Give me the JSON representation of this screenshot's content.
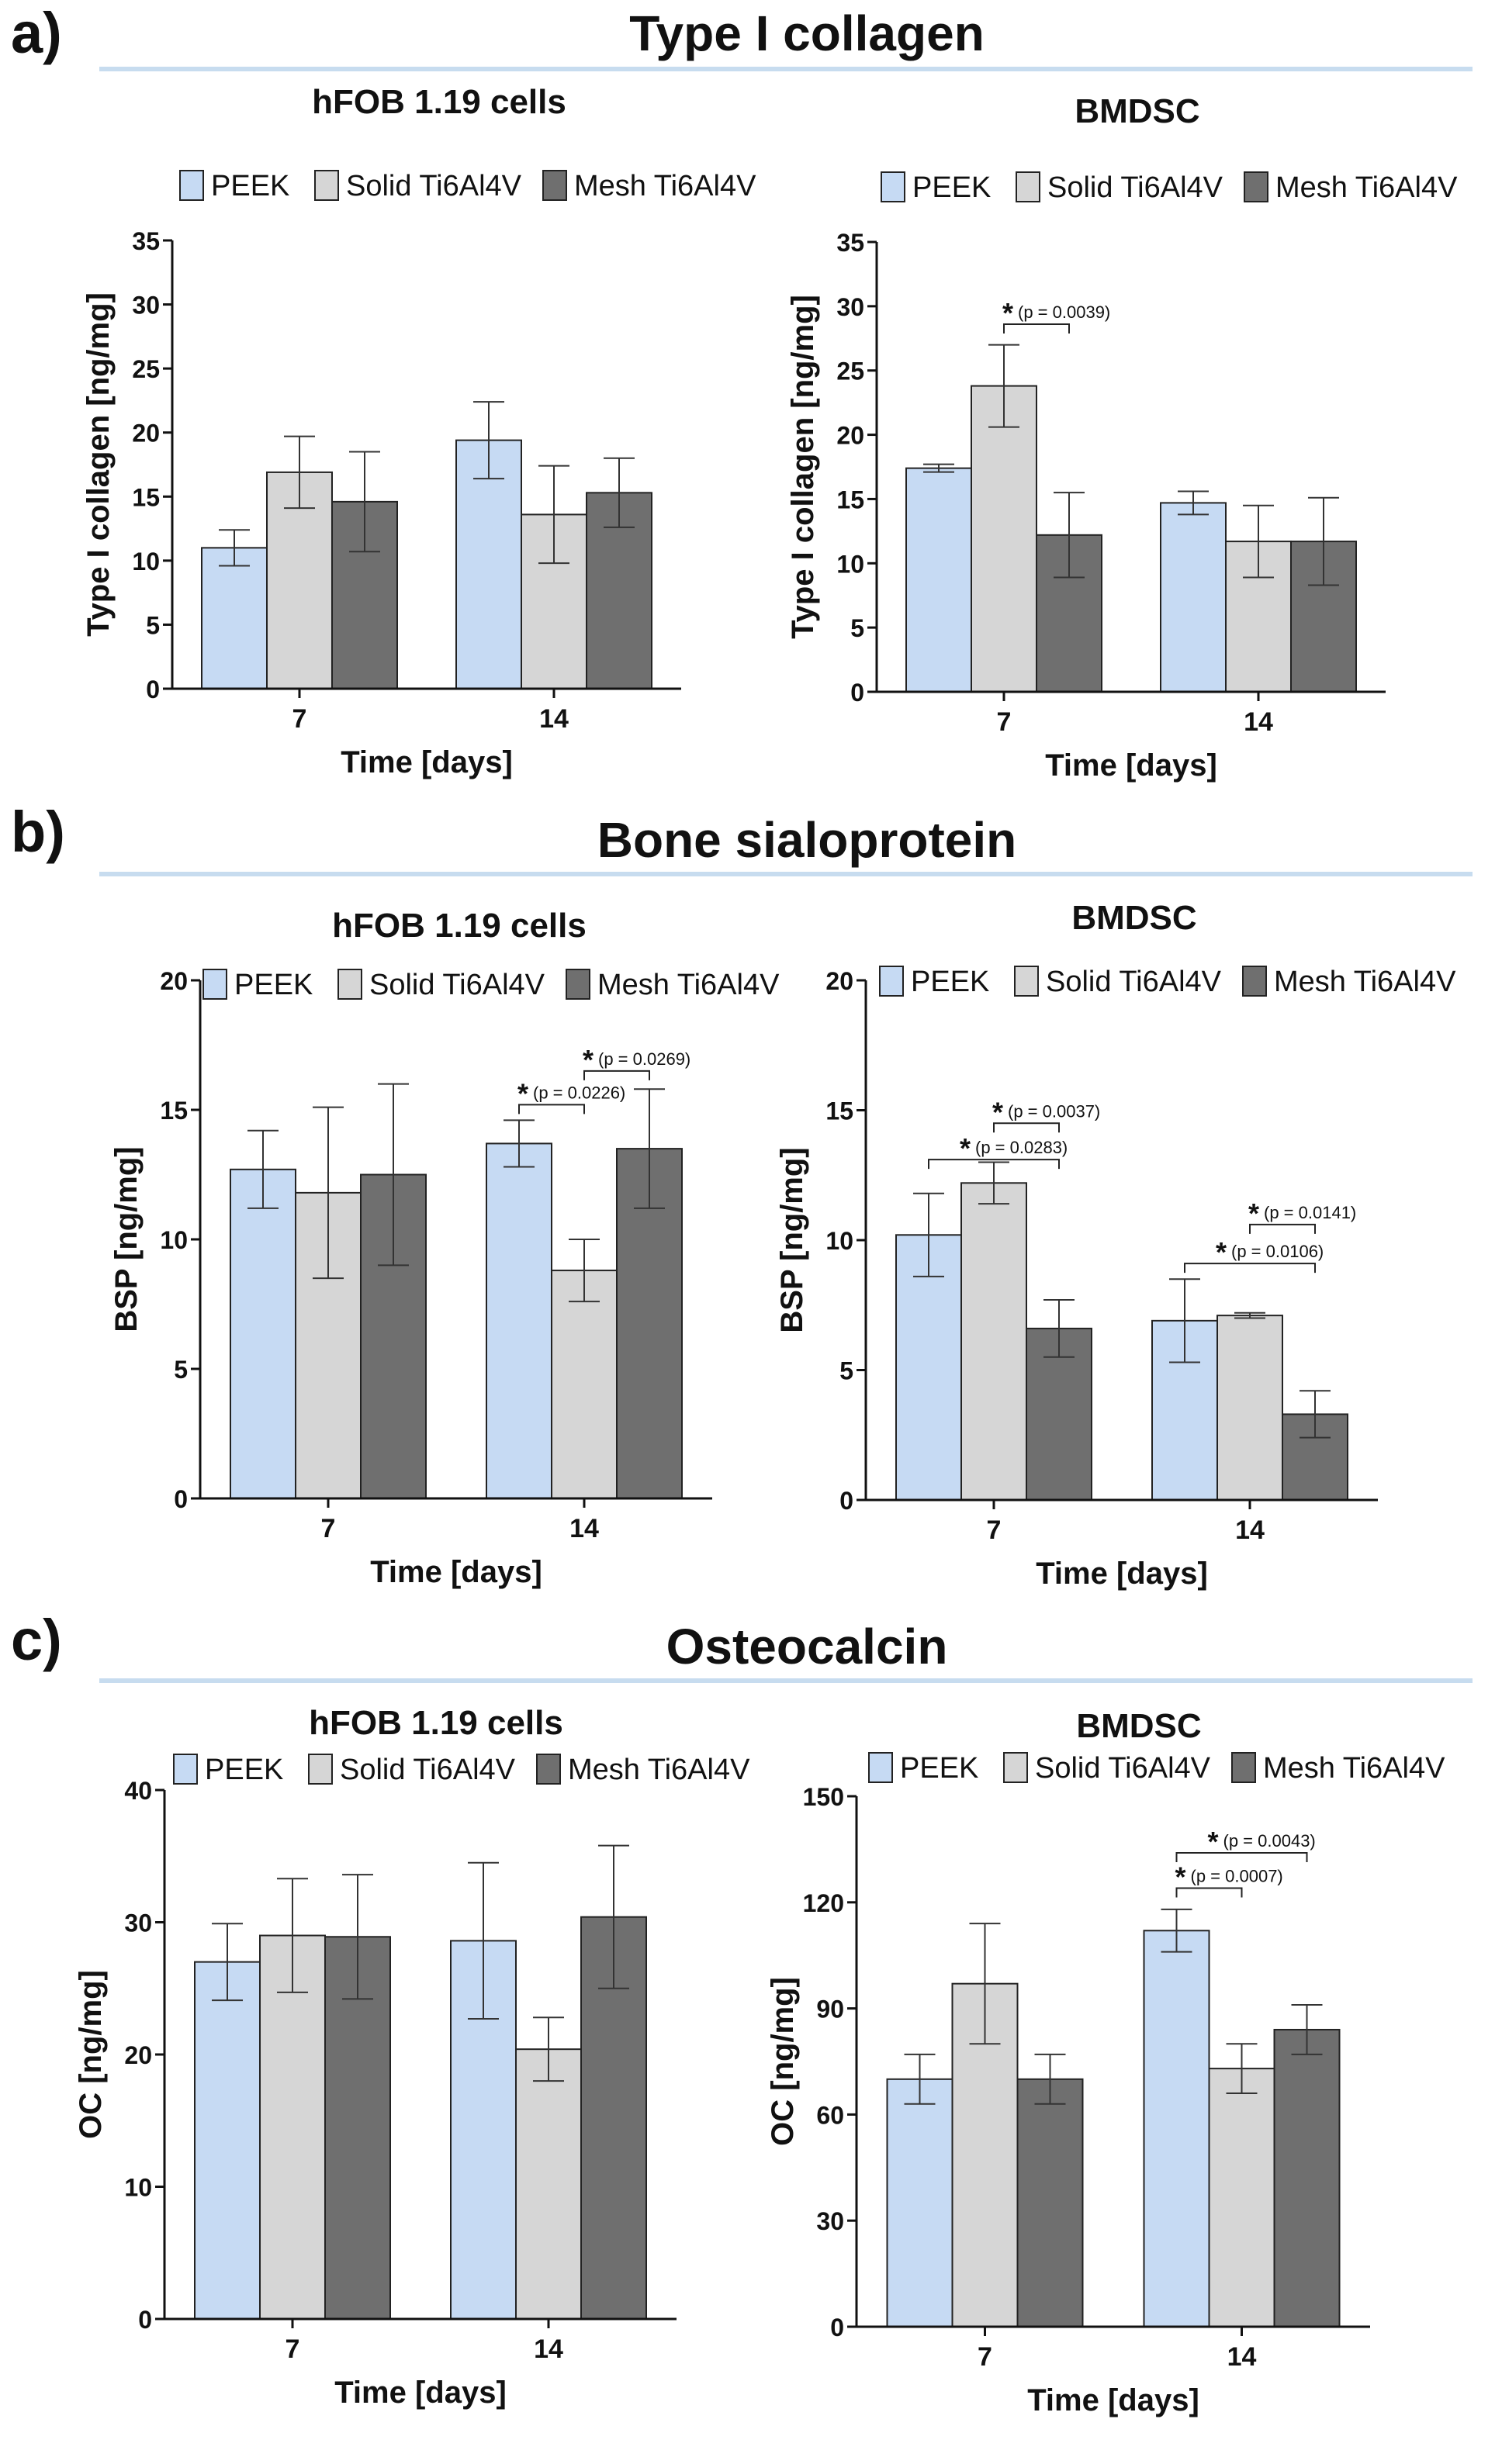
{
  "sections": [
    {
      "label": "a)",
      "title": "Type I collagen"
    },
    {
      "label": "b)",
      "title": "Bone sialoprotein"
    },
    {
      "label": "c)",
      "title": "Osteocalcin"
    }
  ],
  "legend": [
    "PEEK",
    "Solid Ti6Al4V",
    "Mesh Ti6Al4V"
  ],
  "colors": {
    "PEEK": "#c6daf3",
    "Solid Ti6Al4V": "#d6d6d6",
    "Mesh Ti6Al4V": "#6f6f6f",
    "axis": "#111111",
    "rule": "#c7dcef"
  },
  "chart_data": [
    {
      "type": "bar",
      "title": "hFOB 1.19 cells",
      "xlabel": "Time [days]",
      "ylabel": "Type I collagen [ng/mg]",
      "categories": [
        "7",
        "14"
      ],
      "ylim": [
        0,
        35
      ],
      "yticks": [
        0,
        5,
        10,
        15,
        20,
        25,
        30,
        35
      ],
      "series": [
        {
          "name": "PEEK",
          "values": [
            11.0,
            19.4
          ],
          "errors": [
            1.4,
            3.0
          ]
        },
        {
          "name": "Solid Ti6Al4V",
          "values": [
            16.9,
            13.6
          ],
          "errors": [
            2.8,
            3.8
          ]
        },
        {
          "name": "Mesh Ti6Al4V",
          "values": [
            14.6,
            15.3
          ],
          "errors": [
            3.9,
            2.7
          ]
        }
      ],
      "significance": []
    },
    {
      "type": "bar",
      "title": "BMDSC",
      "xlabel": "Time [days]",
      "ylabel": "Type I collagen [ng/mg]",
      "categories": [
        "7",
        "14"
      ],
      "ylim": [
        0,
        35
      ],
      "yticks": [
        0,
        5,
        10,
        15,
        20,
        25,
        30,
        35
      ],
      "series": [
        {
          "name": "PEEK",
          "values": [
            17.4,
            14.7
          ],
          "errors": [
            0.3,
            0.9
          ]
        },
        {
          "name": "Solid Ti6Al4V",
          "values": [
            23.8,
            11.7
          ],
          "errors": [
            3.2,
            2.8
          ]
        },
        {
          "name": "Mesh Ti6Al4V",
          "values": [
            12.2,
            11.7
          ],
          "errors": [
            3.3,
            3.4
          ]
        }
      ],
      "significance": [
        {
          "category": 0,
          "from": 1,
          "to": 2,
          "level": 28.6,
          "star": "*",
          "label": "(p = 0.0039)"
        }
      ]
    },
    {
      "type": "bar",
      "title": "hFOB 1.19 cells",
      "xlabel": "Time [days]",
      "ylabel": "BSP [ng/mg]",
      "categories": [
        "7",
        "14"
      ],
      "ylim": [
        0,
        20
      ],
      "yticks": [
        0,
        5,
        10,
        15,
        20
      ],
      "series": [
        {
          "name": "PEEK",
          "values": [
            12.7,
            13.7
          ],
          "errors": [
            1.5,
            0.9
          ]
        },
        {
          "name": "Solid Ti6Al4V",
          "values": [
            11.8,
            8.8
          ],
          "errors": [
            3.3,
            1.2
          ]
        },
        {
          "name": "Mesh Ti6Al4V",
          "values": [
            12.5,
            13.5
          ],
          "errors": [
            3.5,
            2.3
          ]
        }
      ],
      "significance": [
        {
          "category": 1,
          "from": 0,
          "to": 1,
          "level": 15.2,
          "star": "*",
          "label": "(p = 0.0226)"
        },
        {
          "category": 1,
          "from": 1,
          "to": 2,
          "level": 16.5,
          "star": "*",
          "label": "(p = 0.0269)"
        }
      ]
    },
    {
      "type": "bar",
      "title": "BMDSC",
      "xlabel": "Time [days]",
      "ylabel": "BSP [ng/mg]",
      "categories": [
        "7",
        "14"
      ],
      "ylim": [
        0,
        20
      ],
      "yticks": [
        0,
        5,
        10,
        15,
        20
      ],
      "series": [
        {
          "name": "PEEK",
          "values": [
            10.2,
            6.9
          ],
          "errors": [
            1.6,
            1.6
          ]
        },
        {
          "name": "Solid Ti6Al4V",
          "values": [
            12.2,
            7.1
          ],
          "errors": [
            0.8,
            0.1
          ]
        },
        {
          "name": "Mesh Ti6Al4V",
          "values": [
            6.6,
            3.3
          ],
          "errors": [
            1.1,
            0.9
          ]
        }
      ],
      "significance": [
        {
          "category": 0,
          "from": 1,
          "to": 2,
          "level": 14.5,
          "star": "*",
          "label": "(p = 0.0037)"
        },
        {
          "category": 0,
          "from": 0,
          "to": 2,
          "level": 13.1,
          "star": "*",
          "label": "(p = 0.0283)"
        },
        {
          "category": 1,
          "from": 1,
          "to": 2,
          "level": 10.6,
          "star": "*",
          "label": "(p = 0.0141)"
        },
        {
          "category": 1,
          "from": 0,
          "to": 2,
          "level": 9.1,
          "star": "*",
          "label": "(p = 0.0106)"
        }
      ]
    },
    {
      "type": "bar",
      "title": "hFOB 1.19 cells",
      "xlabel": "Time [days]",
      "ylabel": "OC [ng/mg]",
      "categories": [
        "7",
        "14"
      ],
      "ylim": [
        0,
        40
      ],
      "yticks": [
        0,
        10,
        20,
        30,
        40
      ],
      "series": [
        {
          "name": "PEEK",
          "values": [
            27.0,
            28.6
          ],
          "errors": [
            2.9,
            5.9
          ]
        },
        {
          "name": "Solid Ti6Al4V",
          "values": [
            29.0,
            20.4
          ],
          "errors": [
            4.3,
            2.4
          ]
        },
        {
          "name": "Mesh Ti6Al4V",
          "values": [
            28.9,
            30.4
          ],
          "errors": [
            4.7,
            5.4
          ]
        }
      ],
      "significance": []
    },
    {
      "type": "bar",
      "title": "BMDSC",
      "xlabel": "Time [days]",
      "ylabel": "OC [ng/mg]",
      "categories": [
        "7",
        "14"
      ],
      "ylim": [
        0,
        150
      ],
      "yticks": [
        0,
        30,
        60,
        90,
        120,
        150
      ],
      "series": [
        {
          "name": "PEEK",
          "values": [
            70,
            112
          ],
          "errors": [
            7,
            6
          ]
        },
        {
          "name": "Solid Ti6Al4V",
          "values": [
            97,
            73
          ],
          "errors": [
            17,
            7
          ]
        },
        {
          "name": "Mesh Ti6Al4V",
          "values": [
            70,
            84
          ],
          "errors": [
            7,
            7
          ]
        }
      ],
      "significance": [
        {
          "category": 1,
          "from": 0,
          "to": 2,
          "level": 134,
          "star": "*",
          "label": "(p = 0.0043)"
        },
        {
          "category": 1,
          "from": 0,
          "to": 1,
          "level": 124,
          "star": "*",
          "label": "(p = 0.0007)"
        }
      ]
    }
  ]
}
